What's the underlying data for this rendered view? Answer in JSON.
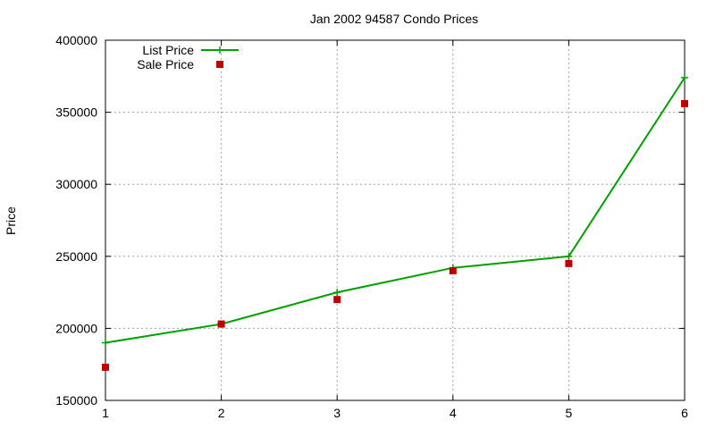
{
  "chart_data": {
    "type": "line",
    "title": "Jan 2002 94587 Condo Prices",
    "xlabel": "",
    "ylabel": "Price",
    "x": [
      1,
      2,
      3,
      4,
      5,
      6
    ],
    "xlim": [
      1,
      6
    ],
    "ylim": [
      150000,
      400000
    ],
    "xticks": [
      "1",
      "2",
      "3",
      "4",
      "5",
      "6"
    ],
    "yticks": [
      "150000",
      "200000",
      "250000",
      "300000",
      "350000",
      "400000"
    ],
    "grid": true,
    "legend_position": "top-left",
    "series": [
      {
        "name": "List Price",
        "style": "line-with-plus-markers",
        "color": "#00a000",
        "values": [
          190000,
          203000,
          225000,
          242000,
          250000,
          374000
        ]
      },
      {
        "name": "Sale Price",
        "style": "square-markers",
        "color": "#c00000",
        "values": [
          173000,
          203000,
          220000,
          240000,
          245000,
          356000
        ]
      }
    ]
  }
}
